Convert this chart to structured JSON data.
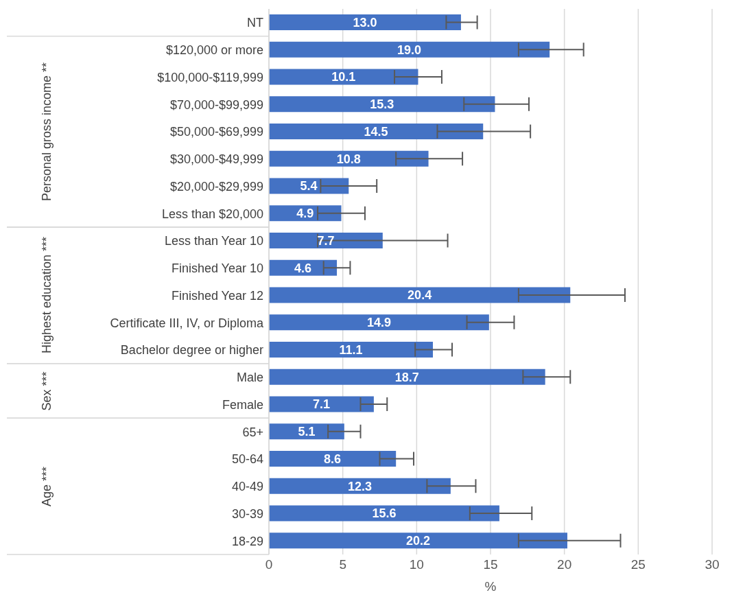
{
  "chart_data": {
    "type": "bar",
    "orientation": "horizontal",
    "categories": [
      "NT",
      "$120,000 or more",
      "$100,000-$119,999",
      "$70,000-$99,999",
      "$50,000-$69,999",
      "$30,000-$49,999",
      "$20,000-$29,999",
      "Less than $20,000",
      "Less than Year 10",
      "Finished Year 10",
      "Finished Year 12",
      "Certificate III, IV, or Diploma",
      "Bachelor degree or higher",
      "Male",
      "Female",
      "65+",
      "50-64",
      "40-49",
      "30-39",
      "18-29"
    ],
    "values": [
      13.0,
      19.0,
      10.1,
      15.3,
      14.5,
      10.8,
      5.4,
      4.9,
      7.7,
      4.6,
      20.4,
      14.9,
      11.1,
      18.7,
      7.1,
      5.1,
      8.6,
      12.3,
      15.6,
      20.2
    ],
    "value_labels": [
      "13.0",
      "19.0",
      "10.1",
      "15.3",
      "14.5",
      "10.8",
      "5.4",
      "4.9",
      "7.7",
      "4.6",
      "20.4",
      "14.9",
      "11.1",
      "18.7",
      "7.1",
      "5.1",
      "8.6",
      "12.3",
      "15.6",
      "20.2"
    ],
    "errors": [
      [
        12.0,
        14.1
      ],
      [
        16.9,
        21.3
      ],
      [
        8.5,
        11.7
      ],
      [
        13.2,
        17.6
      ],
      [
        11.4,
        17.7
      ],
      [
        8.6,
        13.1
      ],
      [
        3.5,
        7.3
      ],
      [
        3.3,
        6.5
      ],
      [
        3.3,
        12.1
      ],
      [
        3.7,
        5.5
      ],
      [
        16.9,
        24.1
      ],
      [
        13.4,
        16.6
      ],
      [
        9.9,
        12.4
      ],
      [
        17.2,
        20.4
      ],
      [
        6.2,
        8.0
      ],
      [
        4.0,
        6.2
      ],
      [
        7.5,
        9.8
      ],
      [
        10.7,
        14.0
      ],
      [
        13.6,
        17.8
      ],
      [
        16.9,
        23.8
      ]
    ],
    "color": "#4472c4",
    "xlabel": "%",
    "xlim": [
      0,
      30
    ],
    "xticks": [
      0,
      5,
      10,
      15,
      20,
      25,
      30
    ],
    "grid": "x",
    "legend": false,
    "annotations": [
      "Personal gross income **",
      "Highest education ***",
      "Sex ***",
      "Age ***"
    ]
  }
}
